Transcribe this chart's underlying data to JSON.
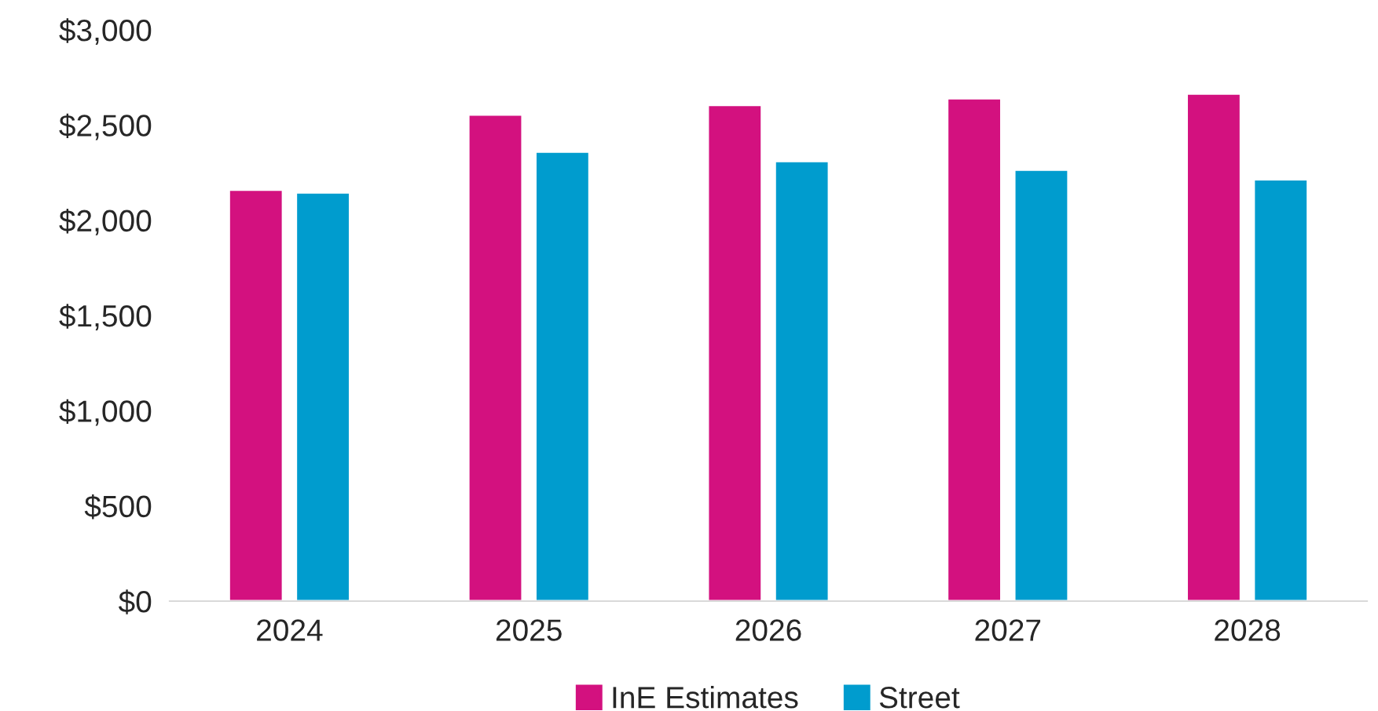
{
  "chart_data": {
    "type": "bar",
    "categories": [
      "2024",
      "2025",
      "2026",
      "2027",
      "2028"
    ],
    "series": [
      {
        "name": "InE Estimates",
        "color": "#d3117f",
        "values": [
          2160,
          2555,
          2605,
          2640,
          2665
        ]
      },
      {
        "name": "Street",
        "color": "#009cce",
        "values": [
          2145,
          2360,
          2310,
          2265,
          2215
        ]
      }
    ],
    "ylim": [
      0,
      3000
    ],
    "yticks": [
      {
        "value": 0,
        "label": "$0"
      },
      {
        "value": 500,
        "label": "$500"
      },
      {
        "value": 1000,
        "label": "$1,000"
      },
      {
        "value": 1500,
        "label": "$1,500"
      },
      {
        "value": 2000,
        "label": "$2,000"
      },
      {
        "value": 2500,
        "label": "$2,500"
      },
      {
        "value": 3000,
        "label": "$3,000"
      }
    ],
    "grid": false,
    "legend": "bottom"
  }
}
